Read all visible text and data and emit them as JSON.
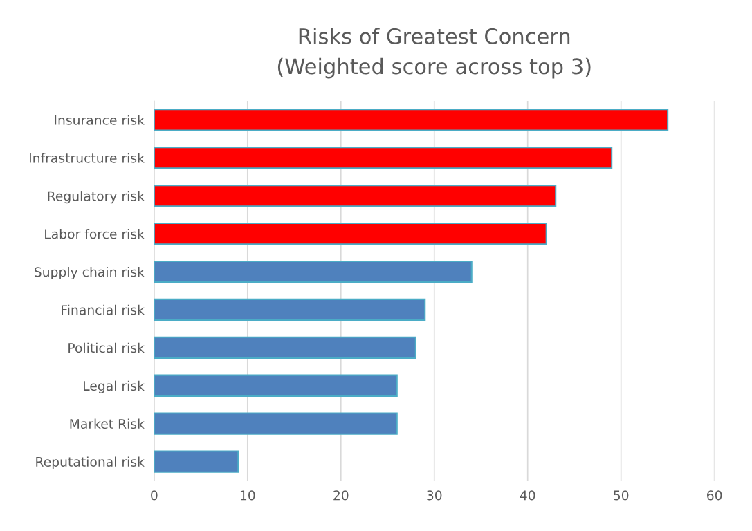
{
  "chart_data": {
    "type": "bar",
    "orientation": "horizontal",
    "title": "Risks of Greatest Concern\n(Weighted score across top 3)",
    "categories": [
      "Insurance risk",
      "Infrastructure risk",
      "Regulatory risk",
      "Labor force risk",
      "Supply chain risk",
      "Financial risk",
      "Political risk",
      "Legal risk",
      "Market Risk",
      "Reputational risk"
    ],
    "values": [
      55,
      49,
      43,
      42,
      34,
      29,
      28,
      26,
      26,
      9
    ],
    "colors": [
      "#ff0000",
      "#ff0000",
      "#ff0000",
      "#ff0000",
      "#4f81bd",
      "#4f81bd",
      "#4f81bd",
      "#4f81bd",
      "#4f81bd",
      "#4f81bd"
    ],
    "xlim": [
      0,
      60
    ],
    "xticks": [
      0,
      10,
      20,
      30,
      40,
      50,
      60
    ],
    "grid": "x"
  }
}
